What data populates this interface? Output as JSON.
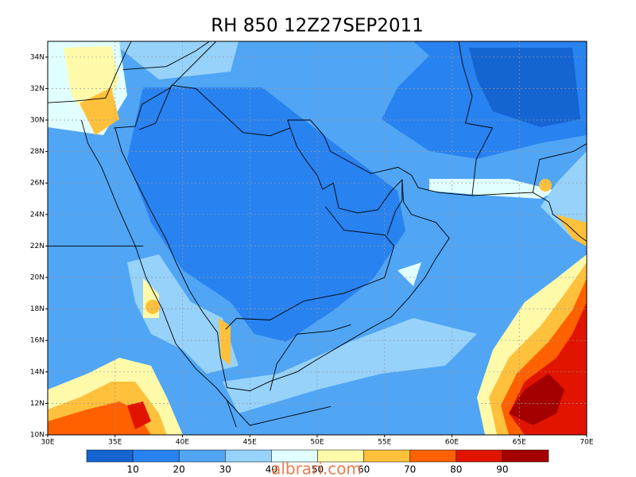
{
  "map": {
    "title": "RH 850 12Z27SEP2011",
    "lon_ticks": [
      "30E",
      "35E",
      "40E",
      "45E",
      "50E",
      "55E",
      "60E",
      "65E",
      "70E"
    ],
    "lat_ticks": [
      "10N",
      "12N",
      "14N",
      "16N",
      "18N",
      "20N",
      "22N",
      "24N",
      "26N",
      "28N",
      "30N",
      "32N",
      "34N"
    ]
  },
  "colorbar": {
    "levels": [
      10,
      20,
      30,
      40,
      50,
      60,
      70,
      80,
      90
    ],
    "colors": [
      "#1464d2",
      "#2882f0",
      "#50a5f5",
      "#96d2fa",
      "#e1ffff",
      "#fffaaa",
      "#ffc03c",
      "#ff6000",
      "#e11400",
      "#a50000"
    ]
  },
  "watermark": "albrari.com"
}
